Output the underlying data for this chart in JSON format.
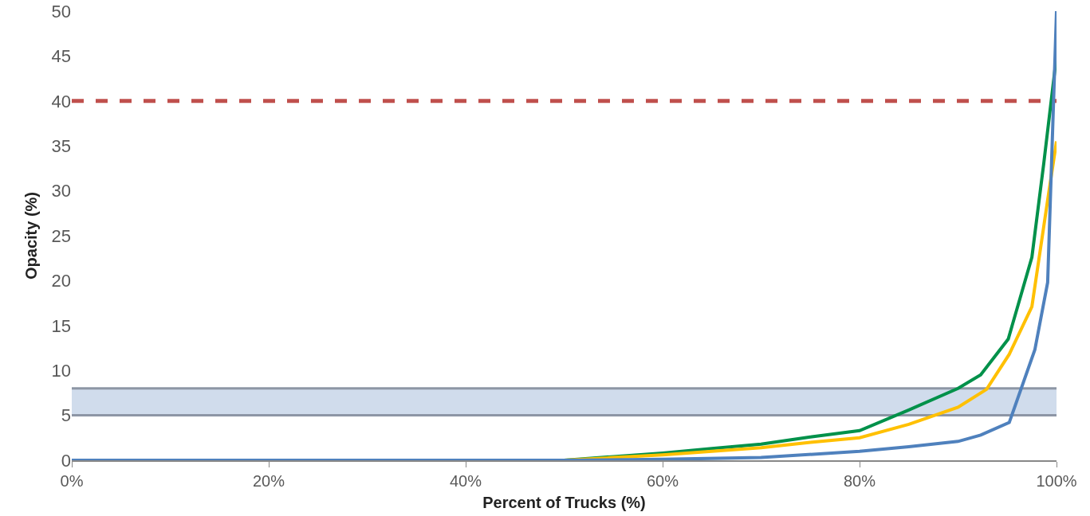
{
  "chart_data": {
    "type": "line",
    "xlabel": "Percent of Trucks (%)",
    "ylabel": "Opacity (%)",
    "xlim": [
      0,
      100
    ],
    "xticks": [
      {
        "value": 0,
        "label": "0%"
      },
      {
        "value": 20,
        "label": "20%"
      },
      {
        "value": 40,
        "label": "40%"
      },
      {
        "value": 60,
        "label": "60%"
      },
      {
        "value": 80,
        "label": "80%"
      },
      {
        "value": 100,
        "label": "100%"
      }
    ],
    "ylim": [
      0,
      50
    ],
    "yticks": [
      0,
      5,
      10,
      15,
      20,
      25,
      30,
      35,
      40,
      45,
      50
    ],
    "grid": false,
    "marker": "none",
    "line_style": "solid",
    "series": [
      {
        "color": "#00914a",
        "x": [
          0,
          50,
          55,
          60,
          65,
          70,
          75,
          80,
          85,
          90,
          92.3,
          95.1,
          97.5,
          98.7,
          100
        ],
        "values": [
          0,
          0,
          0.4,
          0.8,
          1.3,
          1.8,
          2.6,
          3.3,
          5.6,
          8.0,
          9.5,
          13.5,
          22.6,
          33,
          45
        ]
      },
      {
        "color": "#ffc000",
        "x": [
          0,
          50,
          55,
          60,
          65,
          70,
          75,
          80,
          85,
          90,
          92.9,
          95.2,
          97.5,
          99.2,
          100
        ],
        "values": [
          0,
          0,
          0.3,
          0.6,
          1.0,
          1.4,
          2.0,
          2.5,
          4.0,
          5.9,
          7.9,
          11.8,
          17.1,
          29.7,
          35.5
        ]
      },
      {
        "color": "#4f81bd",
        "x": [
          0,
          50,
          60,
          70,
          80,
          85,
          90,
          92.3,
          95.2,
          97.8,
          99.1,
          100
        ],
        "values": [
          0,
          0,
          0.1,
          0.3,
          1.0,
          1.5,
          2.1,
          2.8,
          4.2,
          12.3,
          19.8,
          50
        ]
      }
    ],
    "ref_lines": [
      {
        "axis": "y",
        "value": 40,
        "color": "#c0504d",
        "line_style": "dashed"
      },
      {
        "axis": "y",
        "value": 5,
        "color": "#8d96a5",
        "line_style": "solid"
      },
      {
        "axis": "y",
        "value": 8,
        "color": "#8d96a5",
        "line_style": "solid"
      }
    ],
    "bands": [
      {
        "axis": "y",
        "from": 5,
        "to": 8,
        "color": "#d0dcec"
      }
    ]
  }
}
